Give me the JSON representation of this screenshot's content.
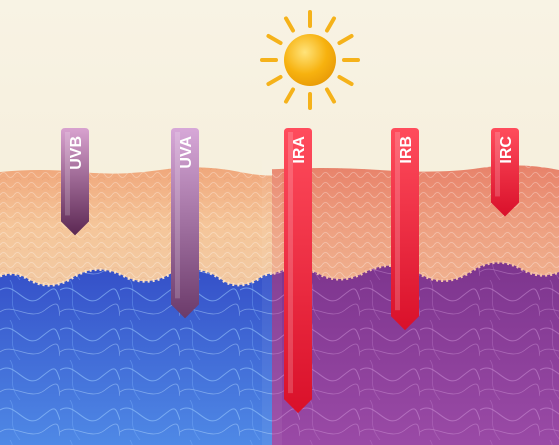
{
  "diagram": {
    "sun": {
      "icon": "sun-icon",
      "color": "#f7b20f",
      "ray_color": "#f5b21a"
    },
    "background_color": "#f6efdc",
    "skin_layers": {
      "epidermis_left_color": "#f2b98a",
      "epidermis_right_color": "#ea8f6e",
      "dermis_left_color": "#3d63d8",
      "dermis_right_color": "#8a3f9a"
    },
    "rays": [
      {
        "label": "UVB",
        "group": "uv",
        "penetration": 0.2,
        "color_top": "#d8a2cf",
        "color_bottom": "#5b2752"
      },
      {
        "label": "UVA",
        "group": "uv",
        "penetration": 0.55,
        "color_top": "#d7a8d8",
        "color_bottom": "#6b3a6a"
      },
      {
        "label": "IRA",
        "group": "ir",
        "penetration": 0.95,
        "color_top": "#ff4c5c",
        "color_bottom": "#d9102a"
      },
      {
        "label": "IRB",
        "group": "ir",
        "penetration": 0.6,
        "color_top": "#ff4c5c",
        "color_bottom": "#d9102a"
      },
      {
        "label": "IRC",
        "group": "ir",
        "penetration": 0.12,
        "color_top": "#ff4c5c",
        "color_bottom": "#d9102a"
      }
    ]
  }
}
